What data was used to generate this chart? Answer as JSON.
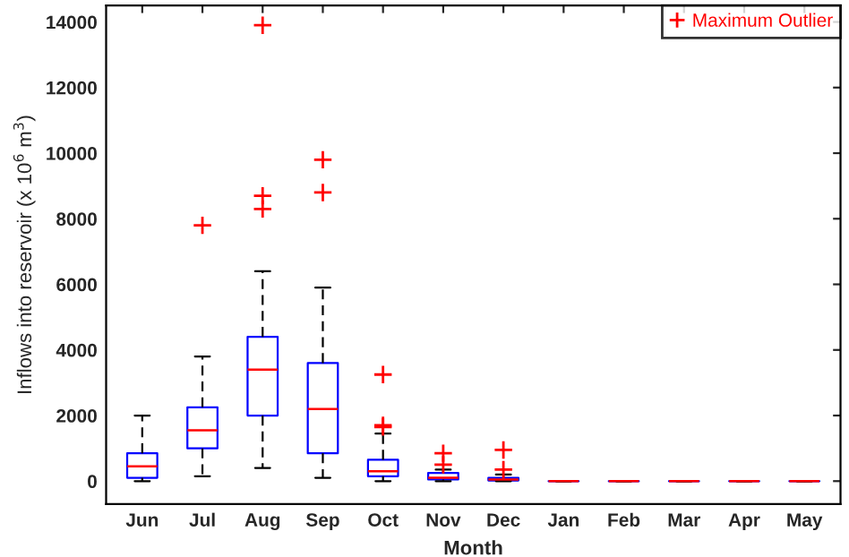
{
  "chart_data": {
    "type": "box",
    "xlabel": "Month",
    "ylabel": "Inflows into reservoir (x 10$^{6}$ m$^{3}$)",
    "categories": [
      "Jun",
      "Jul",
      "Aug",
      "Sep",
      "Oct",
      "Nov",
      "Dec",
      "Jan",
      "Feb",
      "Mar",
      "Apr",
      "May"
    ],
    "ylim": [
      -700,
      14500
    ],
    "yticks": [
      0,
      2000,
      4000,
      6000,
      8000,
      10000,
      12000,
      14000
    ],
    "grid": false,
    "legend": "top right",
    "series": [
      {
        "name": "Maximum Outlier",
        "color": "#0000ff",
        "boxes": [
          {
            "low": 0,
            "q1": 100,
            "median": 450,
            "q3": 850,
            "high": 2000
          },
          {
            "low": 150,
            "q1": 1000,
            "median": 1550,
            "q3": 2250,
            "high": 3800,
            "outliers": [
              7800
            ]
          },
          {
            "low": 400,
            "q1": 2000,
            "median": 3400,
            "q3": 4400,
            "high": 6400,
            "outliers": [
              8300,
              8700,
              13900
            ]
          },
          {
            "low": 100,
            "q1": 850,
            "median": 2200,
            "q3": 3600,
            "high": 5900,
            "outliers": [
              8800,
              9800
            ]
          },
          {
            "low": 0,
            "q1": 150,
            "median": 300,
            "q3": 650,
            "high": 1450,
            "outliers": [
              1650,
              1700,
              3250
            ]
          },
          {
            "low": 0,
            "q1": 50,
            "median": 100,
            "q3": 250,
            "high": 350,
            "outliers": [
              500,
              850
            ]
          },
          {
            "low": 0,
            "q1": 20,
            "median": 50,
            "q3": 100,
            "high": 200,
            "outliers": [
              350,
              950
            ]
          },
          {
            "low": 0,
            "q1": 0,
            "median": 0,
            "q3": 0,
            "high": 0
          },
          {
            "low": 0,
            "q1": 0,
            "median": 0,
            "q3": 0,
            "high": 0
          },
          {
            "low": 0,
            "q1": 0,
            "median": 0,
            "q3": 0,
            "high": 0
          },
          {
            "low": 0,
            "q1": 0,
            "median": 0,
            "q3": 0,
            "high": 0
          },
          {
            "low": 0,
            "q1": 0,
            "median": 0,
            "q3": 0,
            "high": 0
          }
        ]
      }
    ]
  }
}
